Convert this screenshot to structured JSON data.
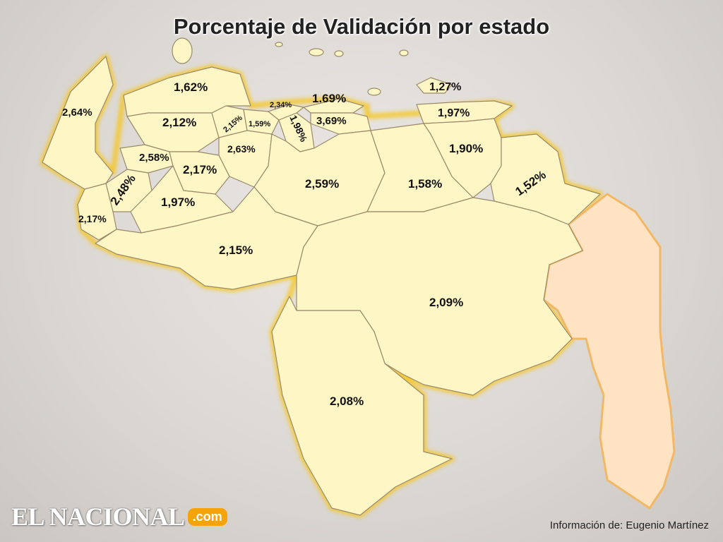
{
  "header": {
    "title": "Porcentaje de Validación por estado"
  },
  "map": {
    "highlight_color": "#fff6c6",
    "excluded_color": "#ffe3c2",
    "border_glow_color": "#f5c623",
    "regions": [
      {
        "id": "zulia",
        "value": "2,64%"
      },
      {
        "id": "falcon",
        "value": "1,62%"
      },
      {
        "id": "lara",
        "value": "2,12%"
      },
      {
        "id": "yaracuy",
        "value": "2,15%"
      },
      {
        "id": "carabobo",
        "value": "1,59%"
      },
      {
        "id": "aragua",
        "value": "1,98%"
      },
      {
        "id": "vargas",
        "value": "2,34%"
      },
      {
        "id": "distrito-capital",
        "value": "1.69%"
      },
      {
        "id": "miranda",
        "value": "3,69%"
      },
      {
        "id": "nueva-esparta",
        "value": "1,27%"
      },
      {
        "id": "sucre",
        "value": "1,97%"
      },
      {
        "id": "trujillo",
        "value": "2,58%"
      },
      {
        "id": "portuguesa",
        "value": "2,17%"
      },
      {
        "id": "cojedes",
        "value": "2,63%"
      },
      {
        "id": "merida",
        "value": "2,48%"
      },
      {
        "id": "barinas",
        "value": "1,97%"
      },
      {
        "id": "tachira",
        "value": "2,17%"
      },
      {
        "id": "guarico",
        "value": "2,59%"
      },
      {
        "id": "anzoategui",
        "value": "1,58%"
      },
      {
        "id": "monagas",
        "value": "1,90%"
      },
      {
        "id": "delta-amacuro",
        "value": "1,52%"
      },
      {
        "id": "apure",
        "value": "2,15%"
      },
      {
        "id": "bolivar",
        "value": "2,09%"
      },
      {
        "id": "amazonas",
        "value": "2,08%"
      }
    ]
  },
  "brand": {
    "logo_main": "EL NACIONAL",
    "logo_suffix": ".com",
    "logo_accent": "#f5a30a"
  },
  "footer": {
    "credit": "Información de: Eugenio Martínez"
  }
}
